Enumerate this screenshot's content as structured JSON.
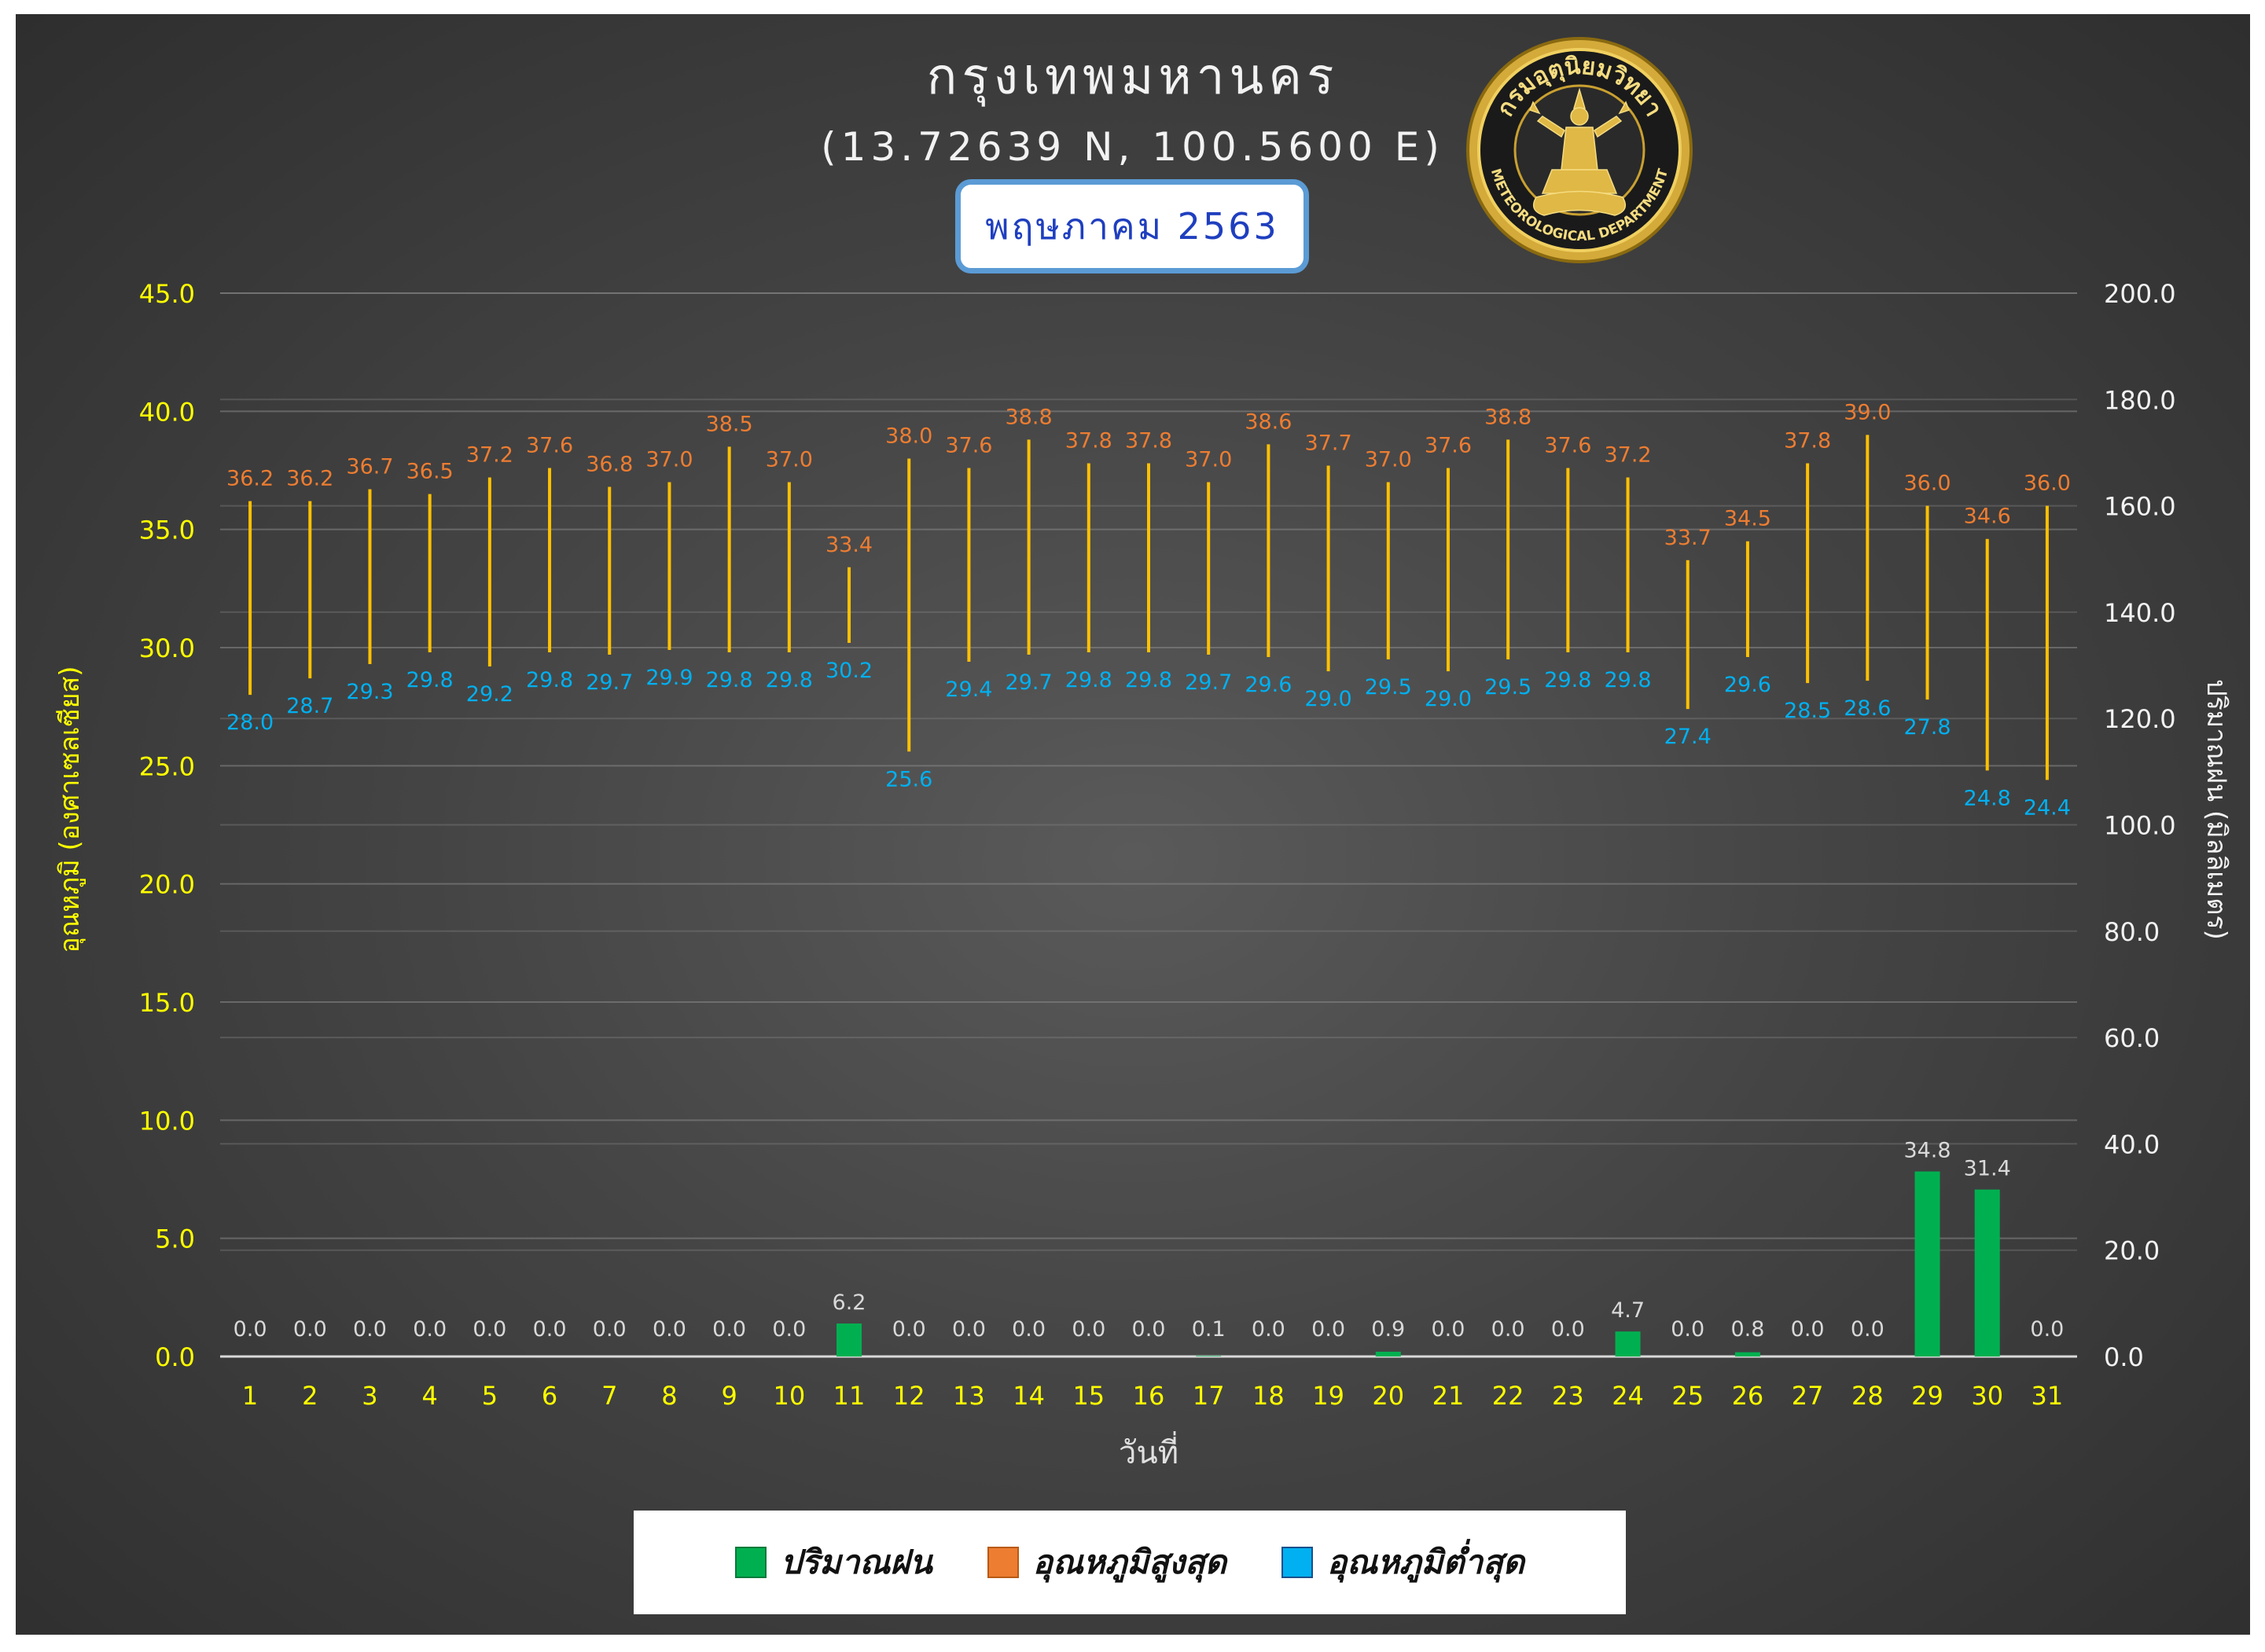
{
  "header": {
    "title": "กรุงเทพมหานคร",
    "coords": "(13.72639 N, 100.5600 E)",
    "month": "พฤษภาคม 2563"
  },
  "logo": {
    "text_top": "กรมอุตุนิยมวิทยา",
    "text_bottom": "METEOROLOGICAL DEPARTMENT",
    "icon": "deity-seal-icon"
  },
  "legend": {
    "rain": "ปริมาณฝน",
    "max": "อุณหภูมิสูงสุด",
    "min": "อุณหภูมิต่ำสุด"
  },
  "colors": {
    "rain": "#00b050",
    "range_line": "#ffc000",
    "max_label": "#ed7d31",
    "min_label": "#00b0f0",
    "left_axis": "#ffff00",
    "right_axis": "#f2f2f2"
  },
  "chart_data": {
    "type": "bar",
    "xlabel": "วันที่",
    "ylabel_left": "อุณหภูมิ (องศาเซลเซียส)",
    "ylabel_right": "ปริมาณฝน (มิลลิเมตร)",
    "ylim_left": [
      0,
      45
    ],
    "yticks_left": [
      "0.0",
      "5.0",
      "10.0",
      "15.0",
      "20.0",
      "25.0",
      "30.0",
      "35.0",
      "40.0",
      "45.0"
    ],
    "ylim_right": [
      0,
      200
    ],
    "yticks_right": [
      "0.0",
      "20.0",
      "40.0",
      "60.0",
      "80.0",
      "100.0",
      "120.0",
      "140.0",
      "160.0",
      "180.0",
      "200.0"
    ],
    "grid": true,
    "legend_position": "bottom",
    "categories": [
      "1",
      "2",
      "3",
      "4",
      "5",
      "6",
      "7",
      "8",
      "9",
      "10",
      "11",
      "12",
      "13",
      "14",
      "15",
      "16",
      "17",
      "18",
      "19",
      "20",
      "21",
      "22",
      "23",
      "24",
      "25",
      "26",
      "27",
      "28",
      "29",
      "30",
      "31"
    ],
    "series": [
      {
        "name": "ปริมาณฝน",
        "type": "bar",
        "axis": "right",
        "values": [
          0.0,
          0.0,
          0.0,
          0.0,
          0.0,
          0.0,
          0.0,
          0.0,
          0.0,
          0.0,
          6.2,
          0.0,
          0.0,
          0.0,
          0.0,
          0.0,
          0.1,
          0.0,
          0.0,
          0.9,
          0.0,
          0.0,
          0.0,
          4.7,
          0.0,
          0.8,
          0.0,
          0.0,
          34.8,
          31.4,
          0.0
        ]
      },
      {
        "name": "อุณหภูมิสูงสุด",
        "type": "range-high",
        "axis": "left",
        "values": [
          36.2,
          36.2,
          36.7,
          36.5,
          37.2,
          37.6,
          36.8,
          37.0,
          38.5,
          37.0,
          33.4,
          38.0,
          37.6,
          38.8,
          37.8,
          37.8,
          37.0,
          38.6,
          37.7,
          37.0,
          37.6,
          38.8,
          37.6,
          37.2,
          33.7,
          34.5,
          37.8,
          39.0,
          36.0,
          34.6,
          36.0
        ]
      },
      {
        "name": "อุณหภูมิต่ำสุด",
        "type": "range-low",
        "axis": "left",
        "values": [
          28.0,
          28.7,
          29.3,
          29.8,
          29.2,
          29.8,
          29.7,
          29.9,
          29.8,
          29.8,
          30.2,
          25.6,
          29.4,
          29.7,
          29.8,
          29.8,
          29.7,
          29.6,
          29.0,
          29.5,
          29.0,
          29.5,
          29.8,
          29.8,
          27.4,
          29.6,
          28.5,
          28.6,
          27.8,
          24.8,
          24.4
        ]
      }
    ]
  }
}
